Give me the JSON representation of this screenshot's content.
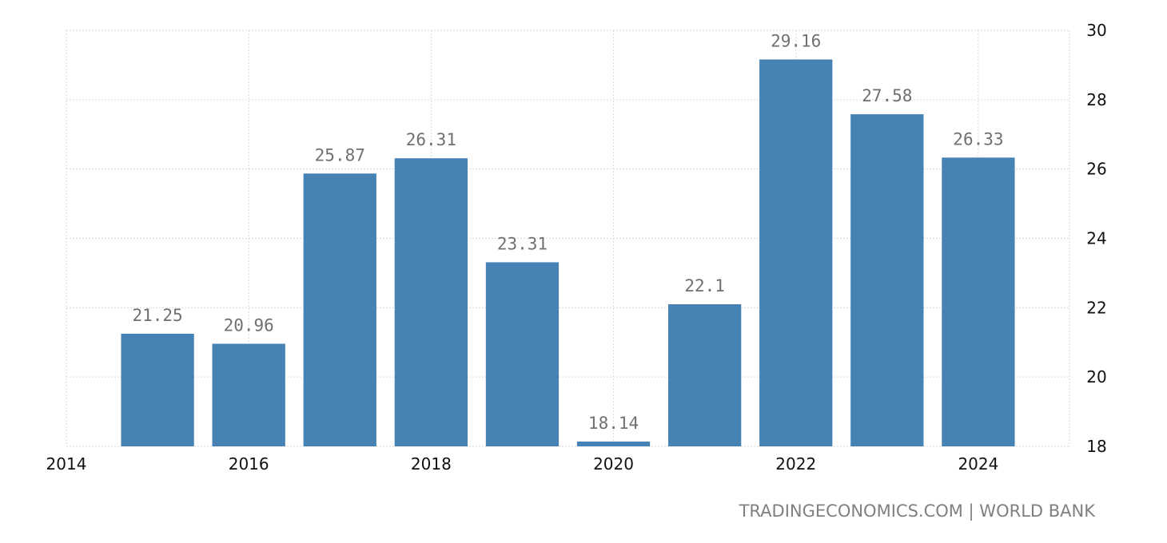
{
  "source": "TRADINGECONOMICS.COM | WORLD BANK",
  "chart_data": {
    "type": "bar",
    "x": [
      2015,
      2016,
      2017,
      2018,
      2019,
      2020,
      2021,
      2022,
      2023,
      2024
    ],
    "values": [
      21.25,
      20.96,
      25.87,
      26.31,
      23.31,
      18.14,
      22.1,
      29.16,
      27.58,
      26.33
    ],
    "data_labels": [
      "21.25",
      "20.96",
      "25.87",
      "26.31",
      "23.31",
      "18.14",
      "22.1",
      "29.16",
      "27.58",
      "26.33"
    ],
    "xlim": [
      2014,
      2025
    ],
    "ylim": [
      18,
      30
    ],
    "x_ticks": [
      "2014",
      "2016",
      "2018",
      "2020",
      "2022",
      "2024"
    ],
    "y_ticks": [
      "18",
      "20",
      "22",
      "24",
      "26",
      "28",
      "30"
    ],
    "y_axis_side": "right",
    "grid": true,
    "bar_color": "#4682b4",
    "title": "",
    "xlabel": "",
    "ylabel": ""
  }
}
